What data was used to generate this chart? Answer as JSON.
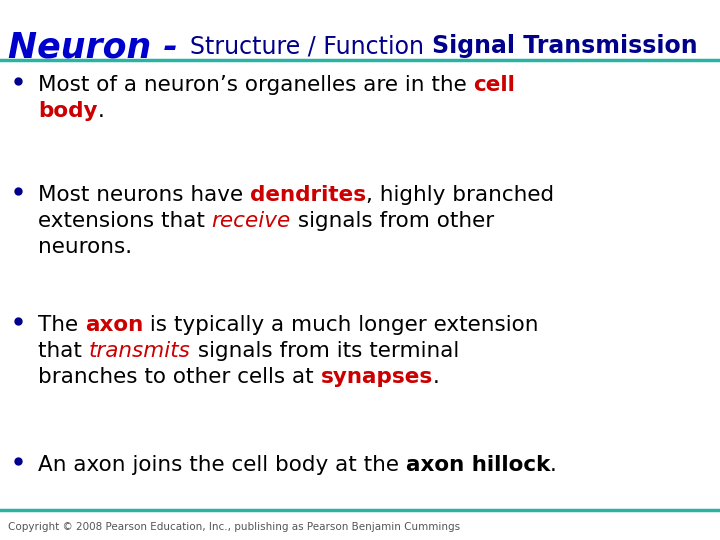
{
  "bg_color": "#ffffff",
  "title_neuron": "Neuron - ",
  "title_structure": "Structure / Function",
  "title_signal": "Signal Transmission",
  "title_color_neuron": "#0000cc",
  "title_color_dark": "#00008b",
  "line_color": "#2ab3a3",
  "copyright": "Copyright © 2008 Pearson Education, Inc., publishing as Pearson Benjamin Cummings",
  "copyright_fontsize": 7.5,
  "bullet_dot_color": "#00008b",
  "text_black": "#000000",
  "text_red": "#cc0000",
  "figsize": [
    7.2,
    5.4
  ],
  "dpi": 100
}
